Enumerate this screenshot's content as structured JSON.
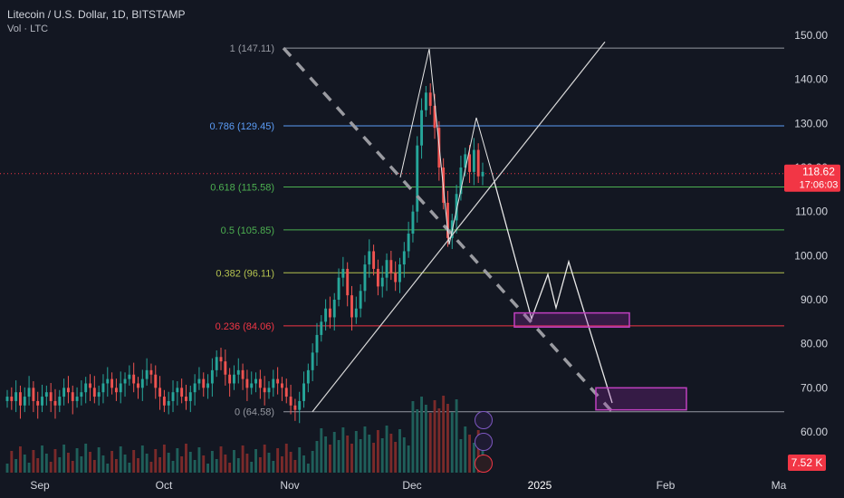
{
  "header": {
    "title": "Litecoin / U.S. Dollar, 1D, BITSTAMP",
    "volume_label": "Vol · LTC"
  },
  "colors": {
    "up": "#26a69a",
    "down": "#ef5350",
    "vol_up": "#1f5f5a",
    "vol_down": "#7a2a2a",
    "fib0": "#9598a1",
    "fib0236": "#f23645",
    "fib0382": "#b4c24f",
    "fib05": "#4caf50",
    "fib0618": "#4caf50",
    "fib0786": "#5b9cf6",
    "fib1": "#9598a1",
    "zone": "#c040c0",
    "price_tag": "#f23645",
    "volume_tag": "#f23645"
  },
  "price_axis": {
    "ticks": [
      "150.00",
      "140.00",
      "130.00",
      "120.00",
      "110.00",
      "100.00",
      "90.00",
      "80.00",
      "70.00",
      "60.00"
    ]
  },
  "time_axis": {
    "ticks": [
      "Sep",
      "Oct",
      "Nov",
      "Dec",
      "2025",
      "Feb",
      "Ma"
    ]
  },
  "current_price": {
    "value": "118.62",
    "countdown": "17:06:03"
  },
  "volume_value": "7.52 K",
  "chart_data": {
    "type": "candlestick",
    "ylim": [
      56,
      155
    ],
    "fib_levels": [
      {
        "ratio": "1",
        "value": 147.11,
        "label": "1 (147.11)"
      },
      {
        "ratio": "0.786",
        "value": 129.45,
        "label": "0.786 (129.45)"
      },
      {
        "ratio": "0.618",
        "value": 115.58,
        "label": "0.618 (115.58)"
      },
      {
        "ratio": "0.5",
        "value": 105.85,
        "label": "0.5 (105.85)"
      },
      {
        "ratio": "0.382",
        "value": 96.11,
        "label": "0.382 (96.11)"
      },
      {
        "ratio": "0.236",
        "value": 84.06,
        "label": "0.236 (84.06)"
      },
      {
        "ratio": "0",
        "value": 64.58,
        "label": "0 (64.58)"
      }
    ],
    "closes": [
      68,
      67,
      69,
      66,
      68,
      70,
      67,
      66,
      68,
      69,
      67,
      66,
      68,
      70,
      69,
      67,
      68,
      69,
      71,
      70,
      68,
      69,
      71,
      72,
      70,
      69,
      71,
      72,
      73,
      71,
      70,
      72,
      74,
      73,
      70,
      68,
      66,
      67,
      69,
      70,
      68,
      67,
      69,
      71,
      72,
      70,
      71,
      74,
      77,
      76,
      73,
      71,
      73,
      74,
      72,
      70,
      71,
      72,
      70,
      69,
      70,
      72,
      71,
      70,
      68,
      66,
      65,
      67,
      71,
      74,
      78,
      82,
      85,
      88,
      86,
      90,
      95,
      97,
      91,
      86,
      88,
      92,
      98,
      101,
      97,
      93,
      95,
      99,
      96,
      94,
      98,
      101,
      105,
      110,
      125,
      133,
      137,
      134,
      129,
      120,
      112,
      104,
      108,
      114,
      120,
      123,
      119,
      124,
      118,
      119
    ],
    "highs_note": "",
    "projection_path": [
      [
        123,
        "Dec 10"
      ],
      [
        89,
        "Dec 27"
      ],
      [
        96,
        "Jan 1"
      ],
      [
        88,
        "Jan 4"
      ],
      [
        98,
        "Jan 8"
      ],
      [
        66,
        "Jan 21"
      ]
    ],
    "target_zones": [
      {
        "top": 87,
        "bottom": 84
      },
      {
        "top": 70,
        "bottom": 65
      }
    ]
  }
}
